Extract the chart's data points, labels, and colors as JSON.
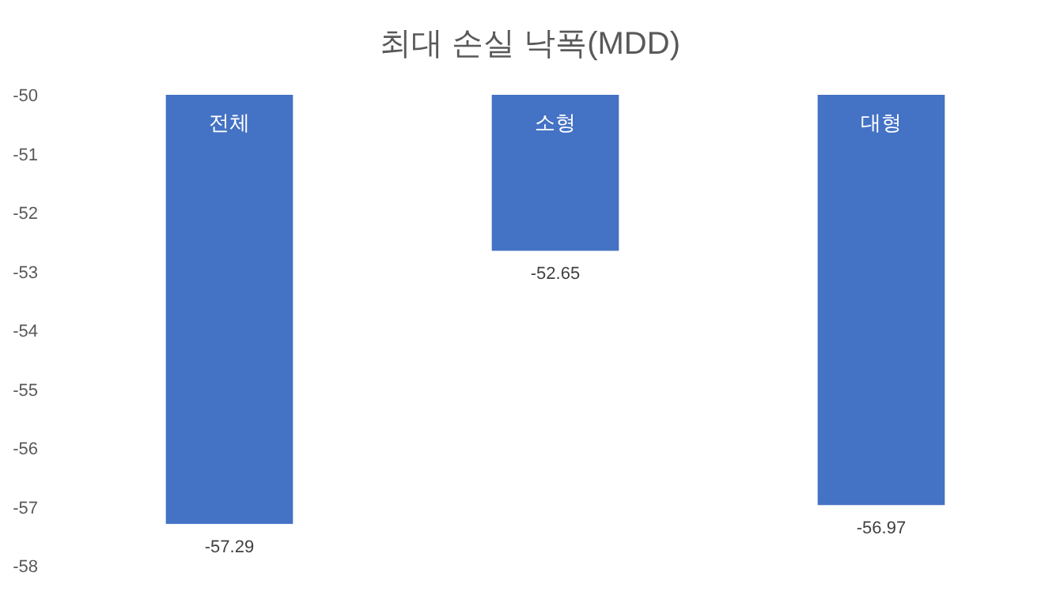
{
  "chart_data": {
    "type": "bar",
    "title": "최대 손실 낙폭(MDD)",
    "categories": [
      "전체",
      "소형",
      "대형"
    ],
    "values": [
      -57.29,
      -52.65,
      -56.97
    ],
    "color": "#4472c4",
    "ylim": [
      -58,
      -50
    ],
    "yticks": [
      -58,
      -57,
      -56,
      -55,
      -54,
      -53,
      -52,
      -51,
      -50
    ],
    "data_labels": true,
    "grid": false
  }
}
